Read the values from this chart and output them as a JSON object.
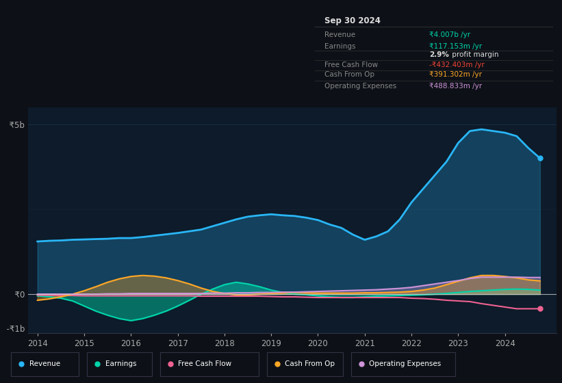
{
  "bg_color": "#0d1117",
  "plot_bg_color": "#0d1b2a",
  "grid_color": "#263d5a",
  "years": [
    2014.0,
    2014.25,
    2014.5,
    2014.75,
    2015.0,
    2015.25,
    2015.5,
    2015.75,
    2016.0,
    2016.25,
    2016.5,
    2016.75,
    2017.0,
    2017.25,
    2017.5,
    2017.75,
    2018.0,
    2018.25,
    2018.5,
    2018.75,
    2019.0,
    2019.25,
    2019.5,
    2019.75,
    2020.0,
    2020.25,
    2020.5,
    2020.75,
    2021.0,
    2021.25,
    2021.5,
    2021.75,
    2022.0,
    2022.25,
    2022.5,
    2022.75,
    2023.0,
    2023.25,
    2023.5,
    2023.75,
    2024.0,
    2024.25,
    2024.5,
    2024.75
  ],
  "revenue": [
    1.55,
    1.57,
    1.58,
    1.6,
    1.61,
    1.62,
    1.63,
    1.65,
    1.65,
    1.68,
    1.72,
    1.76,
    1.8,
    1.85,
    1.9,
    2.0,
    2.1,
    2.2,
    2.28,
    2.32,
    2.35,
    2.32,
    2.3,
    2.25,
    2.18,
    2.05,
    1.95,
    1.75,
    1.6,
    1.7,
    1.85,
    2.2,
    2.7,
    3.1,
    3.5,
    3.9,
    4.45,
    4.8,
    4.85,
    4.8,
    4.75,
    4.65,
    4.3,
    4.0
  ],
  "earnings": [
    -0.05,
    -0.08,
    -0.12,
    -0.2,
    -0.35,
    -0.5,
    -0.62,
    -0.72,
    -0.78,
    -0.72,
    -0.62,
    -0.5,
    -0.35,
    -0.18,
    0.0,
    0.15,
    0.28,
    0.35,
    0.3,
    0.22,
    0.12,
    0.05,
    0.0,
    -0.02,
    -0.05,
    -0.08,
    -0.1,
    -0.1,
    -0.08,
    -0.06,
    -0.05,
    -0.04,
    -0.03,
    -0.02,
    0.0,
    0.02,
    0.05,
    0.08,
    0.1,
    0.12,
    0.14,
    0.15,
    0.14,
    0.12
  ],
  "free_cash_flow": [
    -0.03,
    -0.03,
    -0.04,
    -0.04,
    -0.05,
    -0.05,
    -0.05,
    -0.05,
    -0.05,
    -0.05,
    -0.05,
    -0.05,
    -0.05,
    -0.05,
    -0.06,
    -0.06,
    -0.06,
    -0.06,
    -0.06,
    -0.06,
    -0.07,
    -0.08,
    -0.08,
    -0.09,
    -0.1,
    -0.1,
    -0.1,
    -0.1,
    -0.1,
    -0.1,
    -0.1,
    -0.1,
    -0.12,
    -0.13,
    -0.15,
    -0.18,
    -0.2,
    -0.22,
    -0.28,
    -0.33,
    -0.38,
    -0.43,
    -0.43,
    -0.43
  ],
  "cash_from_op": [
    -0.18,
    -0.14,
    -0.08,
    0.0,
    0.1,
    0.22,
    0.35,
    0.45,
    0.52,
    0.55,
    0.53,
    0.48,
    0.4,
    0.3,
    0.18,
    0.08,
    0.02,
    -0.02,
    -0.02,
    0.0,
    0.02,
    0.04,
    0.05,
    0.04,
    0.03,
    0.03,
    0.03,
    0.03,
    0.04,
    0.04,
    0.05,
    0.06,
    0.08,
    0.12,
    0.18,
    0.28,
    0.38,
    0.48,
    0.55,
    0.55,
    0.52,
    0.48,
    0.42,
    0.39
  ],
  "op_expenses": [
    0.0,
    0.0,
    0.0,
    0.0,
    0.0,
    0.0,
    0.01,
    0.01,
    0.02,
    0.02,
    0.02,
    0.02,
    0.02,
    0.02,
    0.02,
    0.03,
    0.03,
    0.04,
    0.04,
    0.05,
    0.05,
    0.06,
    0.06,
    0.07,
    0.08,
    0.09,
    0.1,
    0.11,
    0.12,
    0.13,
    0.15,
    0.17,
    0.2,
    0.25,
    0.3,
    0.35,
    0.4,
    0.46,
    0.5,
    0.5,
    0.5,
    0.5,
    0.49,
    0.49
  ],
  "revenue_color": "#29b6f6",
  "earnings_color": "#00d4aa",
  "fcf_color": "#f06292",
  "cashop_color": "#ffa726",
  "opex_color": "#ce93d8",
  "ylim": [
    -1.15,
    5.5
  ],
  "xtick_years": [
    2014,
    2015,
    2016,
    2017,
    2018,
    2019,
    2020,
    2021,
    2022,
    2023,
    2024
  ],
  "xlim_min": 2013.8,
  "xlim_max": 2025.1,
  "legend_items": [
    {
      "label": "Revenue",
      "color": "#29b6f6"
    },
    {
      "label": "Earnings",
      "color": "#00d4aa"
    },
    {
      "label": "Free Cash Flow",
      "color": "#f06292"
    },
    {
      "label": "Cash From Op",
      "color": "#ffa726"
    },
    {
      "label": "Operating Expenses",
      "color": "#ce93d8"
    }
  ],
  "info_box": {
    "date": "Sep 30 2024",
    "rows": [
      {
        "label": "Revenue",
        "value": "₹4.007b /yr",
        "value_color": "#00d4aa"
      },
      {
        "label": "Earnings",
        "value": "₹117.153m /yr",
        "value_color": "#00d4aa"
      },
      {
        "label": "",
        "value": "2.9% profit margin",
        "value_color": "#ffffff"
      },
      {
        "label": "Free Cash Flow",
        "value": "-₹432.403m /yr",
        "value_color": "#f44336"
      },
      {
        "label": "Cash From Op",
        "value": "₹391.302m /yr",
        "value_color": "#ffa726"
      },
      {
        "label": "Operating Expenses",
        "value": "₹488.833m /yr",
        "value_color": "#ce93d8"
      }
    ]
  }
}
